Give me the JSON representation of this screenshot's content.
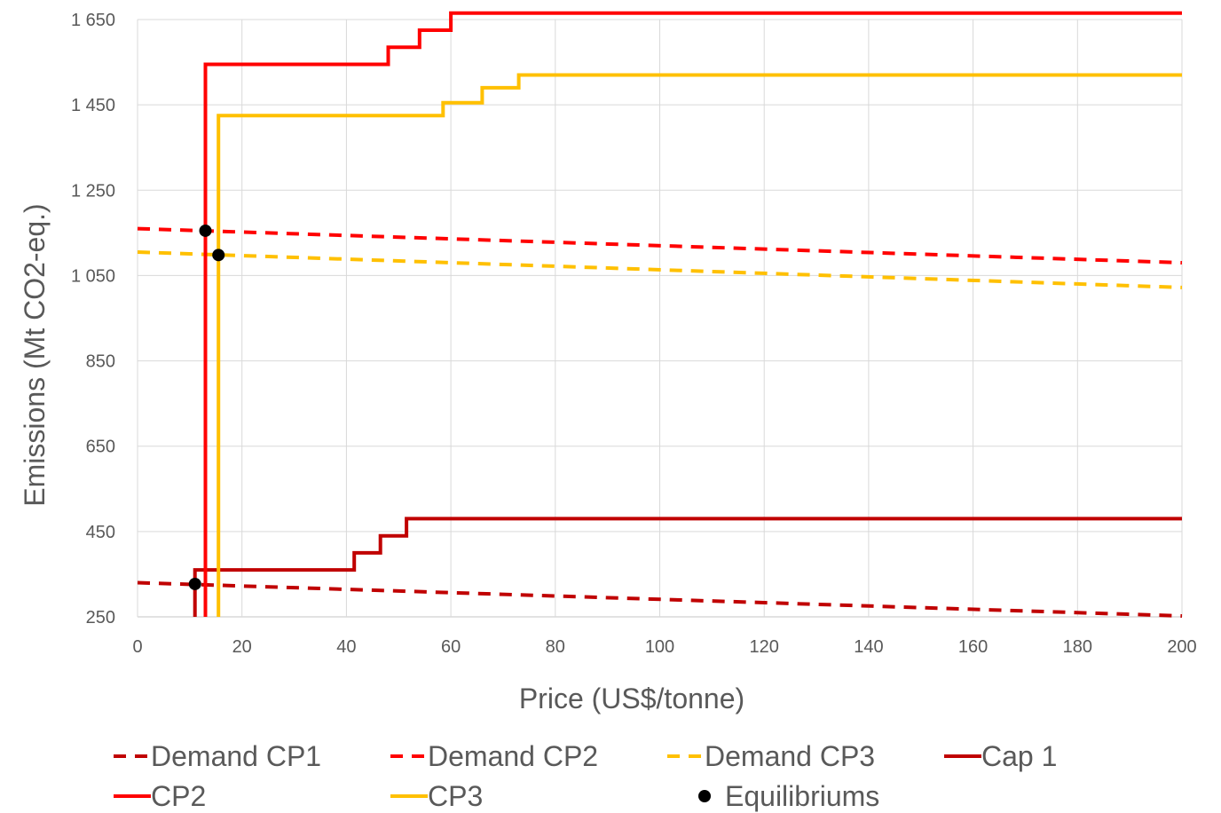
{
  "chart_data": {
    "type": "line",
    "title": "",
    "xlabel": "Price (US$/tonne)",
    "ylabel": "Emissions (Mt CO2-eq.)",
    "xlim": [
      0,
      200
    ],
    "ylim": [
      250,
      1650
    ],
    "x_ticks": [
      "0",
      "20",
      "40",
      "60",
      "80",
      "100",
      "120",
      "140",
      "160",
      "180",
      "200"
    ],
    "y_ticks": [
      "250",
      "450",
      "650",
      "850",
      "1 050",
      "1 250",
      "1 450",
      "1 650"
    ],
    "grid": true,
    "legend_position": "bottom",
    "series": [
      {
        "name": "Demand CP1",
        "style": "dashed",
        "color": "#C00000",
        "points": [
          [
            0,
            330
          ],
          [
            200,
            252
          ]
        ]
      },
      {
        "name": "Demand CP2",
        "style": "dashed",
        "color": "#FF0000",
        "points": [
          [
            0,
            1160
          ],
          [
            200,
            1080
          ]
        ]
      },
      {
        "name": "Demand CP3",
        "style": "dashed",
        "color": "#FFC000",
        "points": [
          [
            0,
            1105
          ],
          [
            200,
            1022
          ]
        ]
      },
      {
        "name": "Cap 1",
        "style": "step",
        "color": "#C00000",
        "points": [
          [
            11,
            250
          ],
          [
            11,
            360
          ],
          [
            41.5,
            360
          ],
          [
            41.5,
            400
          ],
          [
            46.5,
            400
          ],
          [
            46.5,
            440
          ],
          [
            51.5,
            440
          ],
          [
            51.5,
            480
          ],
          [
            200,
            480
          ]
        ]
      },
      {
        "name": "CP2",
        "style": "step",
        "color": "#FF0000",
        "points": [
          [
            13,
            250
          ],
          [
            13,
            1545
          ],
          [
            48,
            1545
          ],
          [
            48,
            1585
          ],
          [
            54,
            1585
          ],
          [
            54,
            1625
          ],
          [
            60,
            1625
          ],
          [
            60,
            1665
          ],
          [
            200,
            1665
          ]
        ]
      },
      {
        "name": "CP3",
        "style": "step",
        "color": "#FFC000",
        "points": [
          [
            15.5,
            250
          ],
          [
            15.5,
            1425
          ],
          [
            58.5,
            1425
          ],
          [
            58.5,
            1455
          ],
          [
            66,
            1455
          ],
          [
            66,
            1490
          ],
          [
            73,
            1490
          ],
          [
            73,
            1520
          ],
          [
            200,
            1520
          ]
        ]
      },
      {
        "name": "Equilibriums",
        "style": "markers",
        "color": "#000000",
        "points": [
          [
            11,
            327
          ],
          [
            13,
            1155
          ],
          [
            15.5,
            1098
          ]
        ]
      }
    ]
  }
}
